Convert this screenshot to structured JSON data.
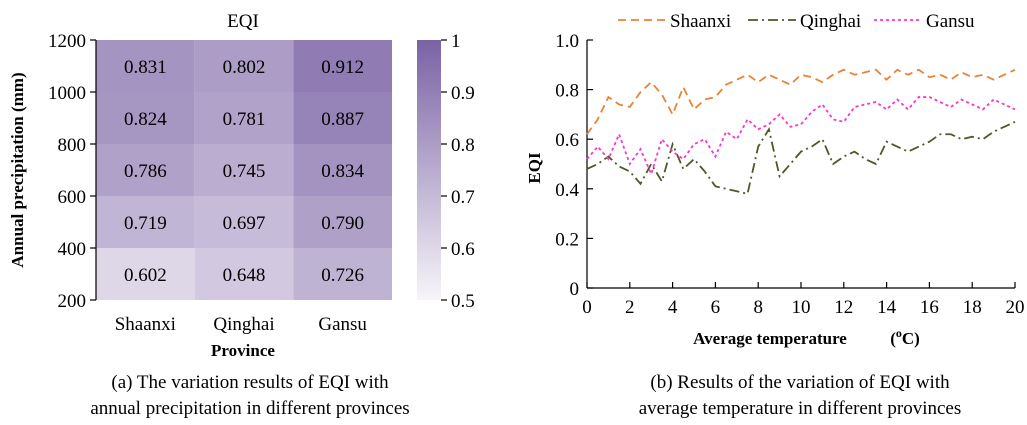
{
  "chart_data": [
    {
      "type": "heatmap",
      "title": "EQI",
      "xlabel": "Province",
      "ylabel": "Annual precipitation (mm)",
      "categories": [
        "Shaanxi",
        "Qinghai",
        "Gansu"
      ],
      "yticks": [
        "200",
        "400",
        "600",
        "800",
        "1000",
        "1200"
      ],
      "ylim": [
        200,
        1200
      ],
      "rows": [
        {
          "range": [
            1000,
            1200
          ],
          "values": [
            0.831,
            0.802,
            0.912
          ],
          "labels": [
            "0.831",
            "0.802",
            "0.912"
          ]
        },
        {
          "range": [
            800,
            1000
          ],
          "values": [
            0.824,
            0.781,
            0.887
          ],
          "labels": [
            "0.824",
            "0.781",
            "0.887"
          ]
        },
        {
          "range": [
            600,
            800
          ],
          "values": [
            0.786,
            0.745,
            0.834
          ],
          "labels": [
            "0.786",
            "0.745",
            "0.834"
          ]
        },
        {
          "range": [
            400,
            600
          ],
          "values": [
            0.719,
            0.697,
            0.79
          ],
          "labels": [
            "0.719",
            "0.697",
            "0.790"
          ]
        },
        {
          "range": [
            200,
            400
          ],
          "values": [
            0.602,
            0.648,
            0.726
          ],
          "labels": [
            "0.602",
            "0.648",
            "0.726"
          ]
        }
      ],
      "colorbar": {
        "min": 0.5,
        "max": 1.0,
        "ticks": [
          "0.5",
          "0.6",
          "0.7",
          "0.8",
          "0.9",
          "1"
        ],
        "color_low": "#f7f5f9",
        "color_high": "#7a62a4"
      },
      "caption": [
        "(a) The variation results of EQI with",
        "annual precipitation in different provinces"
      ]
    },
    {
      "type": "line",
      "xlabel": "Average temperature",
      "xlabel_unit": "(°C)",
      "ylabel": "EQI",
      "xlim": [
        0,
        20
      ],
      "ylim": [
        0,
        1.0
      ],
      "xticks": [
        "0",
        "2",
        "4",
        "6",
        "8",
        "10",
        "12",
        "14",
        "16",
        "18",
        "20"
      ],
      "yticks": [
        "0",
        "0.2",
        "0.4",
        "0.6",
        "0.8",
        "1.0"
      ],
      "grid": false,
      "legend": "top",
      "series": [
        {
          "name": "Shaanxi",
          "color": "#e8833a",
          "dash": "8,5",
          "x": [
            0,
            0.5,
            1,
            1.5,
            2,
            2.5,
            3,
            3.5,
            4,
            4.5,
            5,
            5.5,
            6,
            6.5,
            7,
            7.5,
            8,
            8.5,
            9,
            9.5,
            10,
            10.5,
            11,
            11.5,
            12,
            12.5,
            13,
            13.5,
            14,
            14.5,
            15,
            15.5,
            16,
            16.5,
            17,
            17.5,
            18,
            18.5,
            19,
            19.5,
            20
          ],
          "y": [
            0.62,
            0.68,
            0.77,
            0.74,
            0.73,
            0.79,
            0.83,
            0.78,
            0.7,
            0.81,
            0.72,
            0.76,
            0.77,
            0.82,
            0.84,
            0.86,
            0.83,
            0.86,
            0.84,
            0.82,
            0.86,
            0.85,
            0.83,
            0.86,
            0.88,
            0.86,
            0.87,
            0.88,
            0.84,
            0.88,
            0.86,
            0.88,
            0.85,
            0.86,
            0.84,
            0.87,
            0.85,
            0.86,
            0.84,
            0.86,
            0.88
          ]
        },
        {
          "name": "Qinghai",
          "color": "#4a5a2a",
          "dash": "10,4,2,4",
          "x": [
            0,
            0.5,
            1,
            1.5,
            2,
            2.5,
            3,
            3.5,
            4,
            4.5,
            5,
            5.5,
            6,
            6.5,
            7,
            7.5,
            8,
            8.5,
            9,
            9.5,
            10,
            10.5,
            11,
            11.5,
            12,
            12.5,
            13,
            13.5,
            14,
            14.5,
            15,
            15.5,
            16,
            16.5,
            17,
            17.5,
            18,
            18.5,
            19,
            19.5,
            20
          ],
          "y": [
            0.48,
            0.5,
            0.53,
            0.49,
            0.47,
            0.42,
            0.5,
            0.43,
            0.58,
            0.48,
            0.52,
            0.47,
            0.41,
            0.4,
            0.39,
            0.38,
            0.57,
            0.64,
            0.45,
            0.5,
            0.55,
            0.57,
            0.6,
            0.5,
            0.53,
            0.55,
            0.52,
            0.5,
            0.59,
            0.57,
            0.55,
            0.57,
            0.59,
            0.62,
            0.62,
            0.6,
            0.61,
            0.6,
            0.63,
            0.65,
            0.67
          ]
        },
        {
          "name": "Gansu",
          "color": "#ff33cc",
          "dash": "3,3",
          "x": [
            0,
            0.5,
            1,
            1.5,
            2,
            2.5,
            3,
            3.5,
            4,
            4.5,
            5,
            5.5,
            6,
            6.5,
            7,
            7.5,
            8,
            8.5,
            9,
            9.5,
            10,
            10.5,
            11,
            11.5,
            12,
            12.5,
            13,
            13.5,
            14,
            14.5,
            15,
            15.5,
            16,
            16.5,
            17,
            17.5,
            18,
            18.5,
            19,
            19.5,
            20
          ],
          "y": [
            0.52,
            0.57,
            0.52,
            0.62,
            0.5,
            0.56,
            0.46,
            0.6,
            0.55,
            0.52,
            0.58,
            0.6,
            0.53,
            0.63,
            0.6,
            0.68,
            0.64,
            0.66,
            0.7,
            0.65,
            0.66,
            0.71,
            0.74,
            0.68,
            0.67,
            0.73,
            0.74,
            0.75,
            0.72,
            0.76,
            0.72,
            0.77,
            0.77,
            0.75,
            0.73,
            0.76,
            0.74,
            0.72,
            0.76,
            0.74,
            0.72
          ]
        }
      ],
      "caption": [
        "(b) Results of the variation of EQI with",
        "average temperature in different provinces"
      ]
    }
  ]
}
